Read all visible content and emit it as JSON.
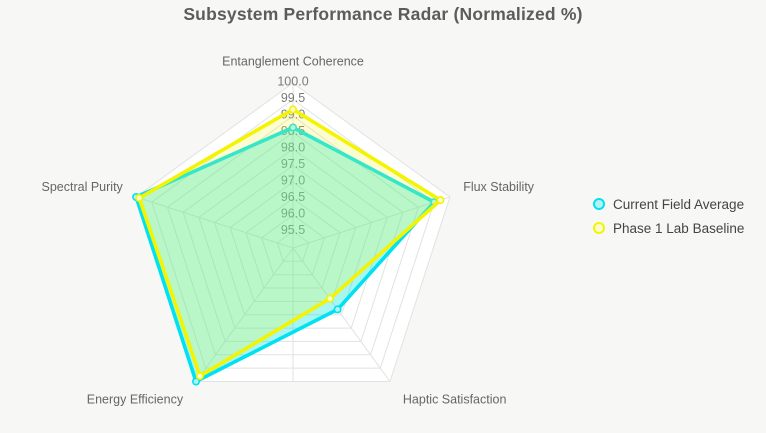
{
  "title": "Subsystem Performance Radar (Normalized %)",
  "colors": {
    "background": "#f7f7f5",
    "plot_fill": "#ffffff",
    "grid_line": "#e2e2e0",
    "title_text": "#5c5c5c",
    "axis_label_text": "#666666",
    "tick_label_text": "#7a7a7a",
    "legend_text": "#444444",
    "series_current": "#00e2f2",
    "series_baseline": "#f4f400"
  },
  "chart_data": {
    "type": "radar",
    "title": "Subsystem Performance Radar (Normalized %)",
    "categories": [
      "Entanglement Coherence",
      "Flux Stability",
      "Haptic Satisfaction",
      "Energy Efficiency",
      "Spectral Purity"
    ],
    "series": [
      {
        "name": "Current Field Average",
        "line_color": "#00e2f2",
        "fill_color": "rgba(0,228,216,0.34)",
        "marker_fill": "#b5f2f5",
        "values": [
          98.65,
          99.5,
          97.3,
          100.0,
          100.0
        ]
      },
      {
        "name": "Phase 1 Lab Baseline",
        "line_color": "#f4f400",
        "fill_color": "rgba(246,246,48,0.22)",
        "marker_fill": "#fbfbd2",
        "values": [
          99.2,
          99.7,
          96.9,
          99.8,
          99.9
        ]
      }
    ],
    "radial_axis": {
      "min": 95,
      "max": 100,
      "tick_step": 0.5,
      "tick_labels": [
        "95.5",
        "96.0",
        "96.5",
        "97.0",
        "97.5",
        "98.0",
        "98.5",
        "99.0",
        "99.5",
        "100.0"
      ]
    },
    "legend_position": "right",
    "grid": true
  }
}
